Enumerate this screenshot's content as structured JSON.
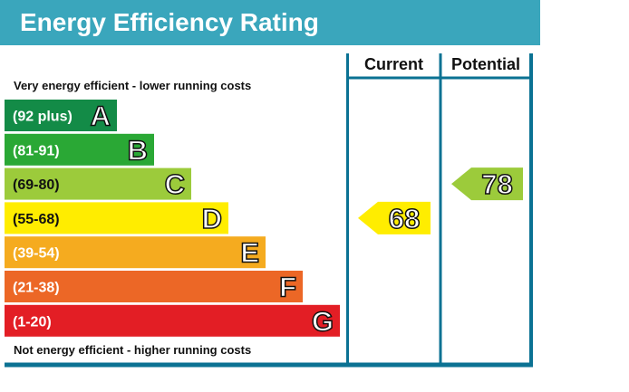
{
  "header": {
    "title": "Energy Efficiency Rating",
    "bg_color": "#3aa6bc"
  },
  "columns": {
    "current": "Current",
    "potential": "Potential"
  },
  "frame_color": "#0b7293",
  "scale_notes": {
    "top": "Very energy efficient - lower running costs",
    "bottom": "Not energy efficient - higher running costs"
  },
  "chart_data": {
    "type": "bar",
    "title": "Energy Efficiency Rating",
    "bands": [
      {
        "letter": "A",
        "range": "(92 plus)",
        "min": 92,
        "max": 100,
        "color": "#138b47"
      },
      {
        "letter": "B",
        "range": "(81-91)",
        "min": 81,
        "max": 91,
        "color": "#2aa835"
      },
      {
        "letter": "C",
        "range": "(69-80)",
        "min": 69,
        "max": 80,
        "color": "#9ccb3b"
      },
      {
        "letter": "D",
        "range": "(55-68)",
        "min": 55,
        "max": 68,
        "color": "#ffed00"
      },
      {
        "letter": "E",
        "range": "(39-54)",
        "min": 39,
        "max": 54,
        "color": "#f5ab1f"
      },
      {
        "letter": "F",
        "range": "(21-38)",
        "min": 21,
        "max": 38,
        "color": "#ec6726"
      },
      {
        "letter": "G",
        "range": "(1-20)",
        "min": 1,
        "max": 20,
        "color": "#e31e25"
      }
    ],
    "current": {
      "label": "Current",
      "value": 68,
      "band": "D"
    },
    "potential": {
      "label": "Potential",
      "value": 78,
      "band": "C"
    }
  }
}
